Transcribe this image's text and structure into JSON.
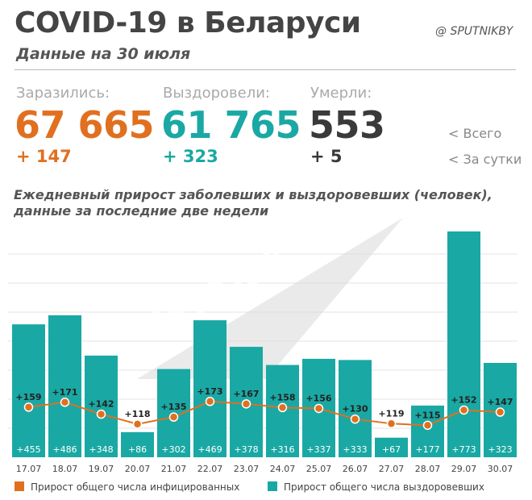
{
  "header": {
    "title": "COVID-19 в Беларуси",
    "subtitle": "Данные на 30 июля",
    "source": "@ SPUTNIKBY"
  },
  "stats": {
    "infected": {
      "label": "Заразились:",
      "total": "67 665",
      "delta": "+ 147",
      "color": "#e07020"
    },
    "recovered": {
      "label": "Выздоровели:",
      "total": "61 765",
      "delta": "+ 323",
      "color": "#1aa8a4"
    },
    "died": {
      "label": "Умерли:",
      "total": "553",
      "delta": "+ 5",
      "color": "#3a3a3a"
    },
    "total_note": "<  Всего",
    "daily_note": "<  За сутки"
  },
  "watermark": "SPUTNIK",
  "chart_data": {
    "type": "bar",
    "title": "Ежедневный прирост заболевших и выздоровевших (человек), данные за последние две недели",
    "categories": [
      "17.07",
      "18.07",
      "19.07",
      "20.07",
      "21.07",
      "22.07",
      "23.07",
      "24.07",
      "25.07",
      "26.07",
      "27.07",
      "28.07",
      "29.07",
      "30.07"
    ],
    "series": [
      {
        "name": "Прирост общего числа выздоровевших",
        "type": "bar",
        "color": "#1aa8a4",
        "values": [
          455,
          486,
          348,
          86,
          302,
          469,
          378,
          316,
          337,
          333,
          67,
          177,
          773,
          323
        ],
        "labels": [
          "+455",
          "+486",
          "+348",
          "+86",
          "+302",
          "+469",
          "+378",
          "+316",
          "+337",
          "+333",
          "+67",
          "+177",
          "+773",
          "+323"
        ]
      },
      {
        "name": "Прирост общего числа инфицированных",
        "type": "line",
        "color": "#e07020",
        "values": [
          159,
          171,
          142,
          118,
          135,
          173,
          167,
          158,
          156,
          130,
          119,
          115,
          152,
          147
        ],
        "labels": [
          "+159",
          "+171",
          "+142",
          "+118",
          "+135",
          "+173",
          "+167",
          "+158",
          "+156",
          "+130",
          "+119",
          "+115",
          "+152",
          "+147"
        ]
      }
    ],
    "ylim": [
      0,
      800
    ],
    "grid": true,
    "legend_position": "bottom"
  }
}
